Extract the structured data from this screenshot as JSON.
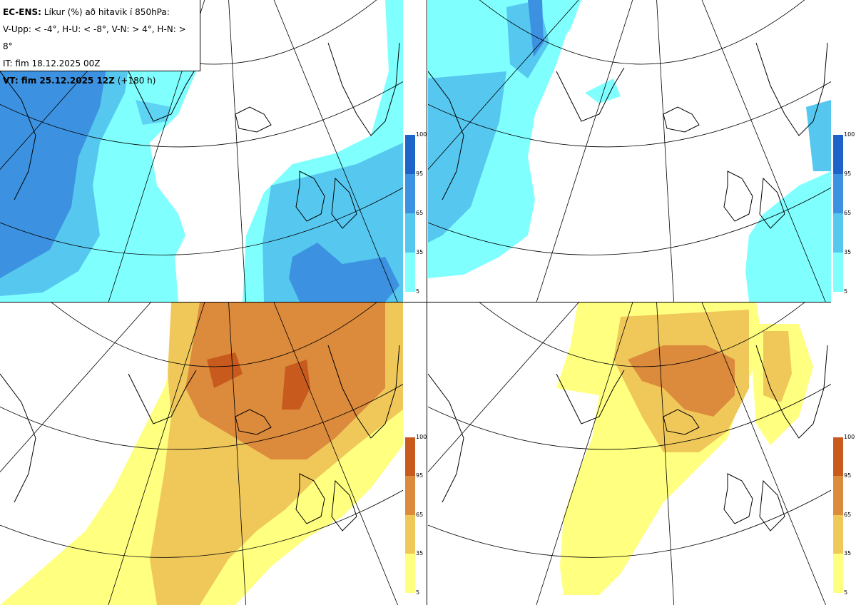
{
  "info": {
    "model": "EC-ENS:",
    "title": "Líkur (%) að hitavik í 850hPa:",
    "thresholds": "V-Upp: < -4°, H-U: < -8°, V-N: > 4°, H-N: > 8°",
    "init_time": "IT: fim 18.12.2025 00Z",
    "valid_label": "VT: fim 25.12.2025 12Z",
    "lead_time": "(+180 h)"
  },
  "colors": {
    "cold": [
      "#80ffff",
      "#56c8f0",
      "#3c92e0",
      "#1e64c8"
    ],
    "warm": [
      "#ffff80",
      "#f0c85a",
      "#dc8a3c",
      "#c85a1e"
    ],
    "land_outline": "#000000",
    "grid": "#000000"
  },
  "legend": {
    "ticks": [
      "100",
      "95",
      "65",
      "35",
      "5"
    ]
  },
  "panels": [
    {
      "id": "V-Upp",
      "palette": "cold",
      "legend_ticks": [
        "100",
        "95",
        "65",
        "35",
        "5"
      ]
    },
    {
      "id": "H-U",
      "palette": "cold",
      "legend_ticks": [
        "100",
        "95",
        "65",
        "35",
        "5"
      ]
    },
    {
      "id": "V-N",
      "palette": "warm",
      "legend_ticks": [
        "100",
        "95",
        "65",
        "35",
        "5"
      ]
    },
    {
      "id": "H-N",
      "palette": "warm",
      "legend_ticks": [
        "100",
        "95",
        "65",
        "35",
        "5"
      ]
    }
  ]
}
